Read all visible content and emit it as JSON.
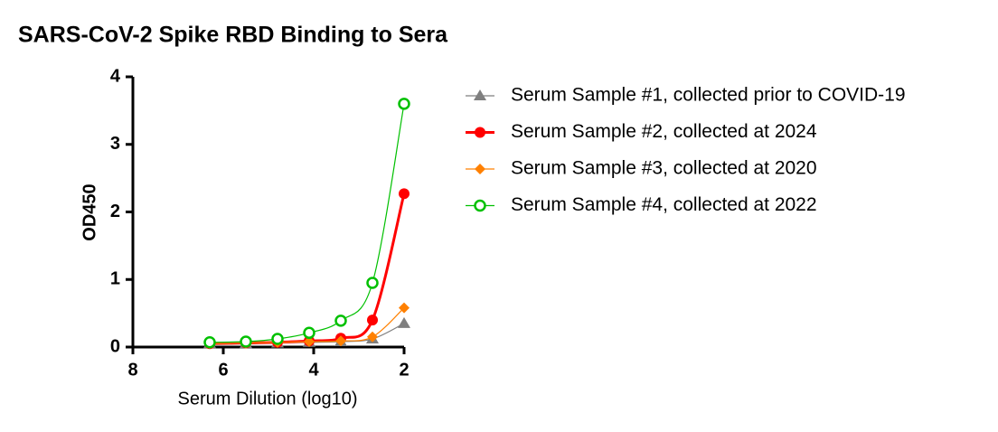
{
  "chart_data": {
    "type": "line",
    "title": "SARS-CoV-2 Spike RBD Binding to Sera",
    "x_label": "Serum Dilution (log10)",
    "y_label": "OD450",
    "x": [
      6.3,
      5.5,
      4.8,
      4.1,
      3.4,
      2.7,
      2.0
    ],
    "xlim": [
      8,
      2
    ],
    "xticks": [
      8,
      6,
      4,
      2
    ],
    "ylim": [
      0,
      4
    ],
    "yticks": [
      0,
      1,
      2,
      3,
      4
    ],
    "legend": "right",
    "series": [
      {
        "name": "Serum Sample #1, collected prior to COVID-19",
        "color": "#7f7f7f",
        "marker": "triangle",
        "values": [
          0.05,
          0.05,
          0.06,
          0.07,
          0.08,
          0.12,
          0.35
        ]
      },
      {
        "name": "Serum Sample #2, collected at 2024",
        "color": "#ff0000",
        "marker": "circle",
        "values": [
          0.05,
          0.06,
          0.07,
          0.09,
          0.13,
          0.4,
          2.27
        ]
      },
      {
        "name": "Serum Sample #3, collected at 2020",
        "color": "#ff8000",
        "marker": "diamond",
        "values": [
          0.05,
          0.06,
          0.07,
          0.08,
          0.09,
          0.15,
          0.58
        ]
      },
      {
        "name": "Serum Sample #4, collected at 2022",
        "color": "#00c000",
        "marker": "open-circle",
        "values": [
          0.07,
          0.08,
          0.12,
          0.21,
          0.39,
          0.95,
          3.6
        ]
      }
    ]
  }
}
